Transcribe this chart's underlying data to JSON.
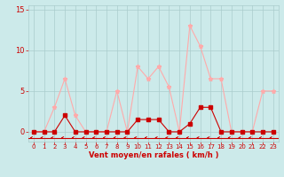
{
  "x": [
    0,
    1,
    2,
    3,
    4,
    5,
    6,
    7,
    8,
    9,
    10,
    11,
    12,
    13,
    14,
    15,
    16,
    17,
    18,
    19,
    20,
    21,
    22,
    23
  ],
  "rafales": [
    0,
    0,
    3,
    6.5,
    2,
    0,
    0,
    0,
    5,
    0,
    8,
    6.5,
    8,
    5.5,
    0,
    13,
    10.5,
    6.5,
    6.5,
    0,
    0,
    0,
    5,
    5
  ],
  "moyen": [
    0,
    0,
    0,
    2,
    0,
    0,
    0,
    0,
    0,
    0,
    1.5,
    1.5,
    1.5,
    0,
    0,
    1,
    3,
    3,
    0,
    0,
    0,
    0,
    0,
    0
  ],
  "color_rafales": "#ffaaaa",
  "color_moyen": "#cc0000",
  "background": "#cceaea",
  "grid_color": "#aacccc",
  "xlabel": "Vent moyen/en rafales ( km/h )",
  "xlim": [
    -0.5,
    23.5
  ],
  "ylim": [
    -1.2,
    15.5
  ],
  "yticks": [
    0,
    5,
    10,
    15
  ],
  "xticks": [
    0,
    1,
    2,
    3,
    4,
    5,
    6,
    7,
    8,
    9,
    10,
    11,
    12,
    13,
    14,
    15,
    16,
    17,
    18,
    19,
    20,
    21,
    22,
    23
  ]
}
